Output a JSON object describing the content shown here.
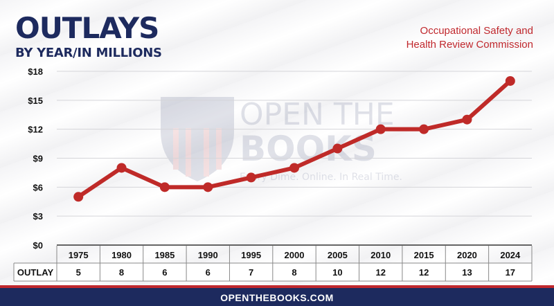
{
  "header": {
    "title": "OUTLAYS",
    "subtitle": "BY YEAR/IN MILLIONS",
    "agency_line1": "Occupational Safety and",
    "agency_line2": "Health Review Commission"
  },
  "watermark": {
    "line1": "OPEN THE",
    "line2": "BOOKS",
    "tagline": "Every Dime. Online. In Real Time."
  },
  "footer": {
    "text": "OPENTHEBOOKS.COM"
  },
  "colors": {
    "navy": "#1d2a5e",
    "red": "#c0282d",
    "line": "#bf2a28"
  },
  "chart_data": {
    "type": "line",
    "categories": [
      "1975",
      "1980",
      "1985",
      "1990",
      "1995",
      "2000",
      "2005",
      "2010",
      "2015",
      "2020",
      "2024"
    ],
    "series": [
      {
        "values": [
          5,
          8,
          6,
          6,
          7,
          8,
          10,
          12,
          12,
          13,
          17
        ]
      }
    ],
    "y_ticks": [
      "$0",
      "$3",
      "$6",
      "$9",
      "$12",
      "$15",
      "$18"
    ],
    "ylim": [
      0,
      18
    ],
    "grid": true,
    "table_row_label": "OUTLAY"
  }
}
